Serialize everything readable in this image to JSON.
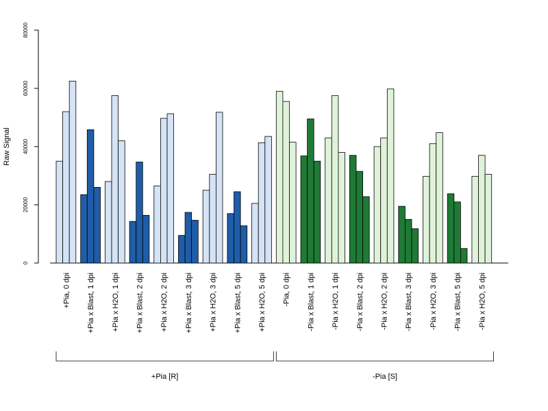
{
  "chart_data": {
    "type": "bar",
    "title": "",
    "ylabel": "Raw Signal",
    "xlabel": "",
    "ylim": [
      0,
      80000
    ],
    "yticks": [
      0,
      20000,
      40000,
      60000,
      80000
    ],
    "grid": false,
    "legend": "none",
    "bar_border_color": "#000000",
    "categories": [
      "+Pia, 0 dpi",
      "+Pia x Blast, 1 dpi",
      "+Pia x H2O, 1 dpi",
      "+Pia x Blast, 2 dpi",
      "+Pia x H2O, 2 dpi",
      "+Pia x Blast, 3 dpi",
      "+Pia x H2O, 3 dpi",
      "+Pia x Blast, 5 dpi",
      "+Pia x H2O, 5 dpi",
      "-Pia, 0 dpi",
      "-Pia x Blast, 1 dpi",
      "-Pia x H2O, 1 dpi",
      "-Pia x Blast, 2 dpi",
      "-Pia x H2O, 2 dpi",
      "-Pia x Blast, 3 dpi",
      "-Pia x H2O, 3 dpi",
      "-Pia x Blast, 5 dpi",
      "-Pia x H2O, 5 dpi"
    ],
    "replicates": [
      [
        35000,
        52000,
        62500
      ],
      [
        23500,
        45800,
        26000
      ],
      [
        28000,
        57500,
        42000
      ],
      [
        14300,
        34700,
        16400
      ],
      [
        26500,
        49700,
        51300
      ],
      [
        9500,
        17400,
        14700
      ],
      [
        25000,
        30500,
        51800
      ],
      [
        17000,
        24500,
        12800
      ],
      [
        20500,
        41300,
        43500
      ],
      [
        59000,
        55500,
        41500
      ],
      [
        36800,
        49500,
        35000
      ],
      [
        43000,
        57500,
        38000
      ],
      [
        37000,
        31500,
        22800
      ],
      [
        40000,
        43000,
        59800
      ],
      [
        19500,
        15000,
        11800
      ],
      [
        29800,
        41000,
        44800
      ],
      [
        23800,
        21000,
        5000
      ],
      [
        29800,
        37000,
        30500
      ]
    ],
    "bar_colors": [
      "#d4e3f5",
      "#1f5da8",
      "#d4e3f5",
      "#1f5da8",
      "#d4e3f5",
      "#1f5da8",
      "#d4e3f5",
      "#1f5da8",
      "#d4e3f5",
      "#e0f3da",
      "#1f7a36",
      "#e0f3da",
      "#1f7a36",
      "#e0f3da",
      "#1f7a36",
      "#e0f3da",
      "#1f7a36",
      "#e0f3da"
    ],
    "groups": [
      {
        "label": "+Pia [R]",
        "first": 0,
        "last": 8
      },
      {
        "label": "-Pia [S]",
        "first": 9,
        "last": 17
      }
    ]
  }
}
